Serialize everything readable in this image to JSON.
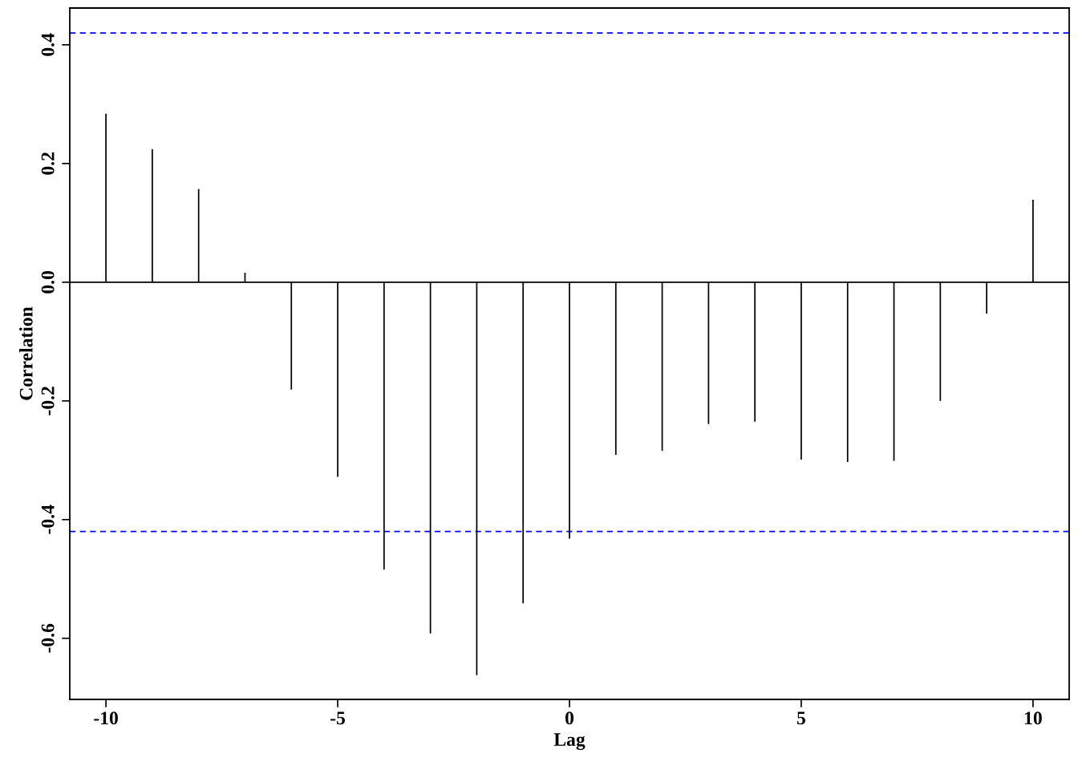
{
  "chart_data": {
    "type": "bar",
    "xlabel": "Lag",
    "ylabel": "Correlation",
    "x": [
      -10,
      -9,
      -8,
      -7,
      -6,
      -5,
      -4,
      -3,
      -2,
      -1,
      0,
      1,
      2,
      3,
      4,
      5,
      6,
      7,
      8,
      9,
      10
    ],
    "series": [
      {
        "color": "#000000",
        "values": [
          0.284,
          0.224,
          0.157,
          0.016,
          -0.181,
          -0.328,
          -0.484,
          -0.592,
          -0.662,
          -0.541,
          -0.432,
          -0.291,
          -0.284,
          -0.239,
          -0.235,
          -0.299,
          -0.303,
          -0.301,
          -0.2,
          -0.053,
          0.139
        ]
      }
    ],
    "grid": false,
    "legend": false,
    "xlim": [
      -10.78,
      10.78
    ],
    "ylim": [
      -0.703,
      0.462
    ],
    "xticks": [
      -10,
      -5,
      0,
      5,
      10
    ],
    "yticks": [
      -0.6,
      -0.4,
      -0.2,
      {
        "value": 0,
        "label": "0.0"
      },
      0.2,
      0.4
    ],
    "ref_lines": [
      {
        "axis": "y",
        "value": 0.42,
        "color": "#0000ff",
        "line_style": "dashed"
      },
      {
        "axis": "y",
        "value": -0.42,
        "color": "#0000ff",
        "line_style": "dashed"
      },
      {
        "axis": "y",
        "value": 0,
        "color": "#000000",
        "line_style": "solid"
      }
    ]
  }
}
